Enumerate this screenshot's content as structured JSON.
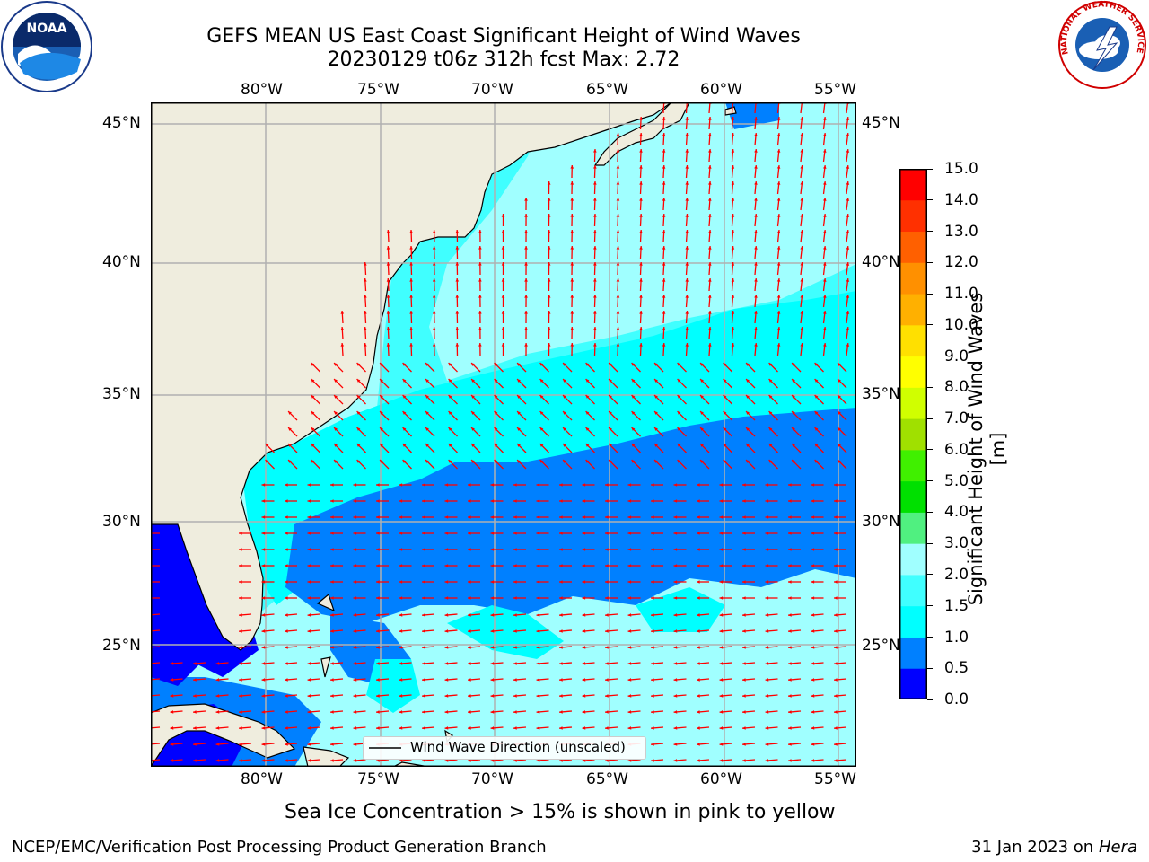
{
  "header": {
    "title_line1": "GEFS MEAN US East Coast Significant Height of Wind Waves",
    "title_line2": "20230129 t06z 312h fcst   Max: 2.72"
  },
  "logos": {
    "left_logo_text": "NOAA",
    "right_logo_text": "NATIONAL WEATHER SERVICE"
  },
  "map": {
    "lon_labels_top": [
      "80°W",
      "75°W",
      "70°W",
      "65°W",
      "60°W",
      "55°W"
    ],
    "lon_labels_bottom": [
      "80°W",
      "75°W",
      "70°W",
      "65°W",
      "60°W",
      "55°W"
    ],
    "lat_labels_left": [
      "45°N",
      "40°N",
      "35°N",
      "30°N",
      "25°N"
    ],
    "lat_labels_right": [
      "45°N",
      "40°N",
      "35°N",
      "30°N",
      "25°N"
    ],
    "legend_label": "Wind Wave Direction (unscaled)",
    "arrow_color": "#ff0000",
    "land_color": "#efedde",
    "grid_color": "#b0b0b0"
  },
  "colorbar": {
    "title": "Significant Height of Wind Waves [m]",
    "tick_labels": [
      "15.0",
      "14.0",
      "13.0",
      "12.0",
      "11.0",
      "10.0",
      "9.0",
      "8.0",
      "7.0",
      "6.0",
      "5.0",
      "4.0",
      "3.0",
      "2.0",
      "1.5",
      "1.0",
      "0.5",
      "0.0"
    ],
    "colors_bottom_to_top": [
      "#0000ff",
      "#0080ff",
      "#00ffff",
      "#40ffff",
      "#a0ffff",
      "#50f080",
      "#00e000",
      "#40f000",
      "#a0e000",
      "#d0ff00",
      "#ffff00",
      "#ffe000",
      "#ffb000",
      "#ff9000",
      "#ff6000",
      "#ff3000",
      "#ff0000"
    ]
  },
  "note": "Sea Ice Concentration > 15% is shown in pink to yellow",
  "footer": {
    "left": "NCEP/EMC/Verification Post Processing Product Generation Branch",
    "right_prefix": "31 Jan 2023 on",
    "right_host": "Hera"
  }
}
